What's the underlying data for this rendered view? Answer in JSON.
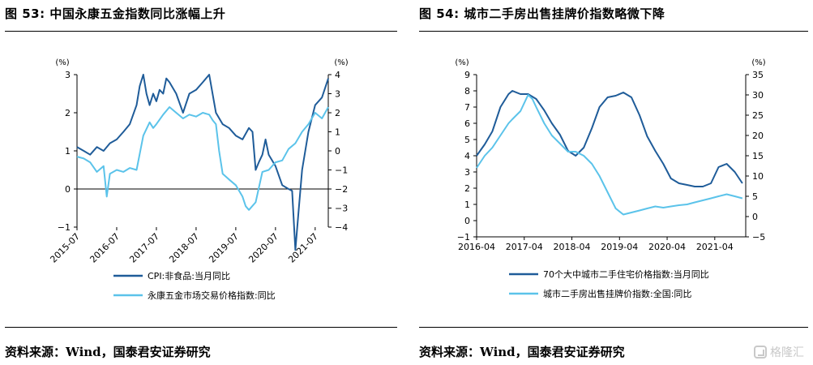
{
  "figures": [
    {
      "title": "图 53: 中国永康五金指数同比涨幅上升",
      "source": "资料来源：Wind，国泰君安证券研究"
    },
    {
      "title": "图 54: 城市二手房出售挂牌价指数略微下降",
      "source": "资料来源：Wind，国泰君安证券研究"
    }
  ],
  "watermark": "格隆汇",
  "colors": {
    "dark_blue": "#1f5c99",
    "light_blue": "#5bc3ea",
    "axis": "#000000"
  },
  "chart_data": [
    {
      "type": "line",
      "left_axis": {
        "unit": "(%)",
        "ylim": [
          -1,
          3
        ],
        "ticks": [
          "3",
          "2",
          "1",
          "0",
          "−1"
        ]
      },
      "right_axis": {
        "unit": "(%)",
        "ylim": [
          -4,
          4
        ],
        "ticks": [
          "4",
          "3",
          "2",
          "1",
          "0",
          "−1",
          "−2",
          "−3",
          "−4"
        ]
      },
      "x_ticks": [
        "2015-07",
        "2016-07",
        "2017-07",
        "2018-07",
        "2019-07",
        "2020-07",
        "2021-07"
      ],
      "x_range": [
        2015.5,
        2021.83
      ],
      "grid": false,
      "legend_position": "bottom",
      "series": [
        {
          "name": "CPI:非食品:当月同比",
          "axis": "left",
          "color": "#1f5c99",
          "x": [
            2015.5,
            2015.67,
            2015.83,
            2016.0,
            2016.17,
            2016.33,
            2016.5,
            2016.67,
            2016.83,
            2017.0,
            2017.08,
            2017.17,
            2017.25,
            2017.33,
            2017.42,
            2017.5,
            2017.58,
            2017.67,
            2017.75,
            2017.83,
            2018.0,
            2018.17,
            2018.33,
            2018.5,
            2018.67,
            2018.83,
            2019.0,
            2019.17,
            2019.33,
            2019.5,
            2019.67,
            2019.83,
            2019.92,
            2020.0,
            2020.08,
            2020.17,
            2020.25,
            2020.33,
            2020.5,
            2020.67,
            2020.83,
            2020.92,
            2021.0,
            2021.08,
            2021.17,
            2021.33,
            2021.5,
            2021.67,
            2021.83
          ],
          "values": [
            1.1,
            1.0,
            0.9,
            1.1,
            1.0,
            1.2,
            1.3,
            1.5,
            1.7,
            2.2,
            2.7,
            3.0,
            2.5,
            2.2,
            2.5,
            2.3,
            2.6,
            2.5,
            2.9,
            2.8,
            2.5,
            2.0,
            2.5,
            2.6,
            2.8,
            3.0,
            2.0,
            1.7,
            1.6,
            1.4,
            1.3,
            1.6,
            1.5,
            0.5,
            0.7,
            0.9,
            1.3,
            0.9,
            0.6,
            0.1,
            0.0,
            -0.05,
            -1.6,
            -0.6,
            0.5,
            1.5,
            2.2,
            2.4,
            2.9
          ]
        },
        {
          "name": "永康五金市场交易价格指数:同比",
          "axis": "right",
          "color": "#5bc3ea",
          "x": [
            2015.5,
            2015.67,
            2015.83,
            2016.0,
            2016.17,
            2016.25,
            2016.33,
            2016.5,
            2016.67,
            2016.83,
            2017.0,
            2017.17,
            2017.33,
            2017.42,
            2017.5,
            2017.67,
            2017.83,
            2018.0,
            2018.17,
            2018.33,
            2018.5,
            2018.67,
            2018.83,
            2018.92,
            2019.0,
            2019.08,
            2019.17,
            2019.33,
            2019.5,
            2019.67,
            2019.75,
            2019.83,
            2020.0,
            2020.17,
            2020.33,
            2020.5,
            2020.67,
            2020.83,
            2021.0,
            2021.17,
            2021.33,
            2021.5,
            2021.67,
            2021.83
          ],
          "values": [
            -0.3,
            -0.4,
            -0.6,
            -1.1,
            -0.8,
            -2.4,
            -1.2,
            -1.0,
            -1.1,
            -0.9,
            -1.0,
            0.8,
            1.5,
            1.2,
            1.4,
            1.9,
            2.3,
            2.0,
            1.7,
            1.9,
            1.8,
            2.0,
            1.9,
            1.6,
            1.4,
            0.0,
            -1.2,
            -1.5,
            -1.8,
            -2.4,
            -2.9,
            -3.1,
            -2.7,
            -1.1,
            -1.0,
            -0.6,
            -0.5,
            0.1,
            0.4,
            1.0,
            1.4,
            2.0,
            1.7,
            2.3
          ]
        }
      ]
    },
    {
      "type": "line",
      "left_axis": {
        "unit": "(%)",
        "ylim": [
          -1,
          9
        ],
        "ticks": [
          "9",
          "8",
          "7",
          "6",
          "5",
          "4",
          "3",
          "2",
          "1",
          "0",
          "−1"
        ]
      },
      "right_axis": {
        "unit": "(%)",
        "ylim": [
          -5,
          35
        ],
        "ticks": [
          "35",
          "30",
          "25",
          "20",
          "15",
          "10",
          "5",
          "0",
          "−5"
        ]
      },
      "x_ticks": [
        "2016-04",
        "2017-04",
        "2018-04",
        "2019-04",
        "2020-04",
        "2021-04"
      ],
      "x_range": [
        2016.25,
        2021.9
      ],
      "grid": false,
      "legend_position": "bottom",
      "series": [
        {
          "name": "70个大中城市二手住宅价格指数:当月同比",
          "axis": "left",
          "color": "#1f5c99",
          "x": [
            2016.25,
            2016.42,
            2016.58,
            2016.75,
            2016.92,
            2017.0,
            2017.17,
            2017.33,
            2017.5,
            2017.67,
            2017.83,
            2018.0,
            2018.17,
            2018.33,
            2018.5,
            2018.67,
            2018.83,
            2019.0,
            2019.17,
            2019.33,
            2019.5,
            2019.67,
            2019.83,
            2020.0,
            2020.17,
            2020.33,
            2020.5,
            2020.67,
            2020.83,
            2021.0,
            2021.17,
            2021.33,
            2021.5,
            2021.67,
            2021.83
          ],
          "values": [
            4.0,
            4.7,
            5.5,
            7.0,
            7.8,
            8.0,
            7.8,
            7.8,
            7.5,
            6.8,
            6.0,
            5.3,
            4.3,
            4.0,
            4.5,
            5.7,
            7.0,
            7.6,
            7.7,
            7.9,
            7.6,
            6.5,
            5.2,
            4.3,
            3.5,
            2.6,
            2.3,
            2.2,
            2.1,
            2.1,
            2.3,
            3.3,
            3.5,
            3.0,
            2.3
          ]
        },
        {
          "name": "城市二手房出售挂牌价指数:全国:同比",
          "axis": "right",
          "color": "#5bc3ea",
          "x": [
            2016.25,
            2016.42,
            2016.58,
            2016.75,
            2016.92,
            2017.0,
            2017.17,
            2017.33,
            2017.42,
            2017.5,
            2017.67,
            2017.83,
            2018.0,
            2018.17,
            2018.33,
            2018.5,
            2018.67,
            2018.83,
            2019.0,
            2019.17,
            2019.33,
            2019.5,
            2019.67,
            2019.83,
            2020.0,
            2020.17,
            2020.33,
            2020.5,
            2020.67,
            2020.83,
            2021.0,
            2021.17,
            2021.33,
            2021.5,
            2021.67,
            2021.83
          ],
          "values": [
            12.0,
            15.0,
            17.0,
            20.0,
            23.0,
            24.0,
            26.0,
            30.0,
            29.0,
            27.0,
            23.0,
            20.0,
            18.0,
            16.0,
            16.0,
            15.0,
            13.0,
            10.0,
            6.0,
            2.0,
            0.5,
            1.0,
            1.5,
            2.0,
            2.5,
            2.2,
            2.5,
            2.8,
            3.0,
            3.5,
            4.0,
            4.5,
            5.0,
            5.5,
            5.0,
            4.5
          ]
        }
      ]
    }
  ]
}
